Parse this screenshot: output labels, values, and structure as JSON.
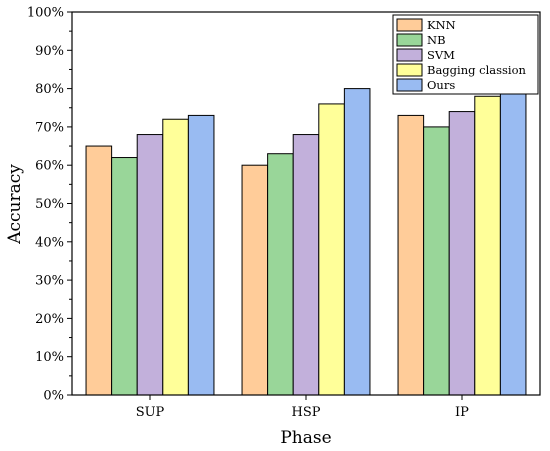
{
  "chart_data": {
    "type": "bar",
    "title": "",
    "xlabel": "Phase",
    "ylabel": "Accuracy",
    "categories": [
      "SUP",
      "HSP",
      "IP"
    ],
    "ylim": [
      0,
      100
    ],
    "y_ticks": [
      "0%",
      "10%",
      "20%",
      "30%",
      "40%",
      "50%",
      "60%",
      "70%",
      "80%",
      "90%",
      "100%"
    ],
    "legend_position": "top-right",
    "grid": false,
    "series": [
      {
        "name": "KNN",
        "color": "#FFCC99",
        "values": [
          65,
          60,
          73
        ]
      },
      {
        "name": "NB",
        "color": "#99D699",
        "values": [
          62,
          63,
          70
        ]
      },
      {
        "name": "SVM",
        "color": "#C2B0DB",
        "values": [
          68,
          68,
          74
        ]
      },
      {
        "name": "Bagging classion",
        "color": "#FFFF99",
        "values": [
          72,
          76,
          78
        ]
      },
      {
        "name": "Ours",
        "color": "#99BBF2",
        "values": [
          73,
          80,
          79
        ]
      }
    ]
  }
}
